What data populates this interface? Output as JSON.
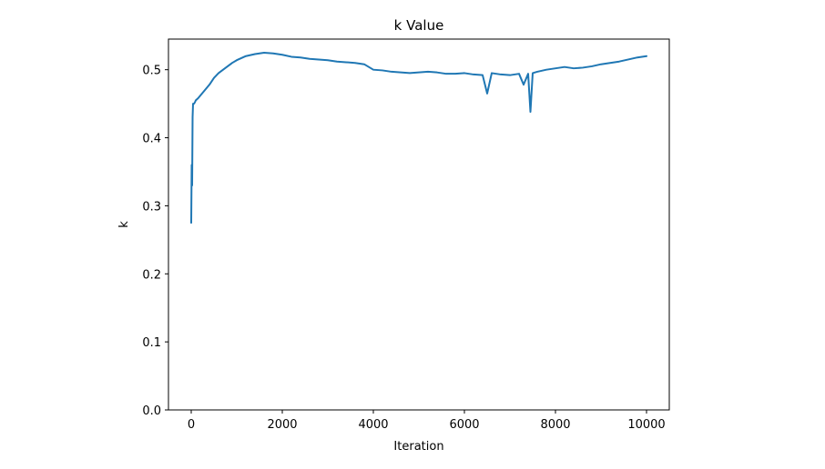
{
  "chart_data": {
    "type": "line",
    "title": "k Value",
    "xlabel": "Iteration",
    "ylabel": "k",
    "xlim": [
      -500,
      10500
    ],
    "ylim": [
      0.0,
      0.545
    ],
    "x_ticks": [
      0,
      2000,
      4000,
      6000,
      8000,
      10000
    ],
    "x_tick_labels": [
      "0",
      "2000",
      "4000",
      "6000",
      "8000",
      "10000"
    ],
    "y_ticks": [
      0.0,
      0.1,
      0.2,
      0.3,
      0.4,
      0.5
    ],
    "y_tick_labels": [
      "0.0",
      "0.1",
      "0.2",
      "0.3",
      "0.4",
      "0.5"
    ],
    "grid": false,
    "series": [
      {
        "color": "#1f77b4",
        "x": [
          0,
          10,
          20,
          30,
          40,
          60,
          80,
          100,
          150,
          200,
          300,
          400,
          500,
          600,
          700,
          800,
          900,
          1000,
          1200,
          1400,
          1600,
          1800,
          2000,
          2200,
          2400,
          2600,
          2800,
          3000,
          3200,
          3400,
          3600,
          3800,
          4000,
          4200,
          4400,
          4600,
          4800,
          5000,
          5200,
          5400,
          5600,
          5800,
          6000,
          6200,
          6400,
          6500,
          6600,
          6800,
          7000,
          7200,
          7300,
          7400,
          7450,
          7500,
          7600,
          7800,
          8000,
          8200,
          8400,
          8600,
          8800,
          9000,
          9200,
          9400,
          9600,
          9800,
          10000
        ],
        "y": [
          0.275,
          0.36,
          0.33,
          0.43,
          0.45,
          0.45,
          0.452,
          0.455,
          0.458,
          0.462,
          0.47,
          0.478,
          0.488,
          0.495,
          0.5,
          0.505,
          0.51,
          0.514,
          0.52,
          0.523,
          0.525,
          0.524,
          0.522,
          0.519,
          0.518,
          0.516,
          0.515,
          0.514,
          0.512,
          0.511,
          0.51,
          0.508,
          0.5,
          0.499,
          0.497,
          0.496,
          0.495,
          0.496,
          0.497,
          0.496,
          0.494,
          0.494,
          0.495,
          0.493,
          0.492,
          0.465,
          0.495,
          0.493,
          0.492,
          0.494,
          0.478,
          0.494,
          0.438,
          0.495,
          0.497,
          0.5,
          0.502,
          0.504,
          0.502,
          0.503,
          0.505,
          0.508,
          0.51,
          0.512,
          0.515,
          0.518,
          0.52
        ]
      }
    ]
  }
}
